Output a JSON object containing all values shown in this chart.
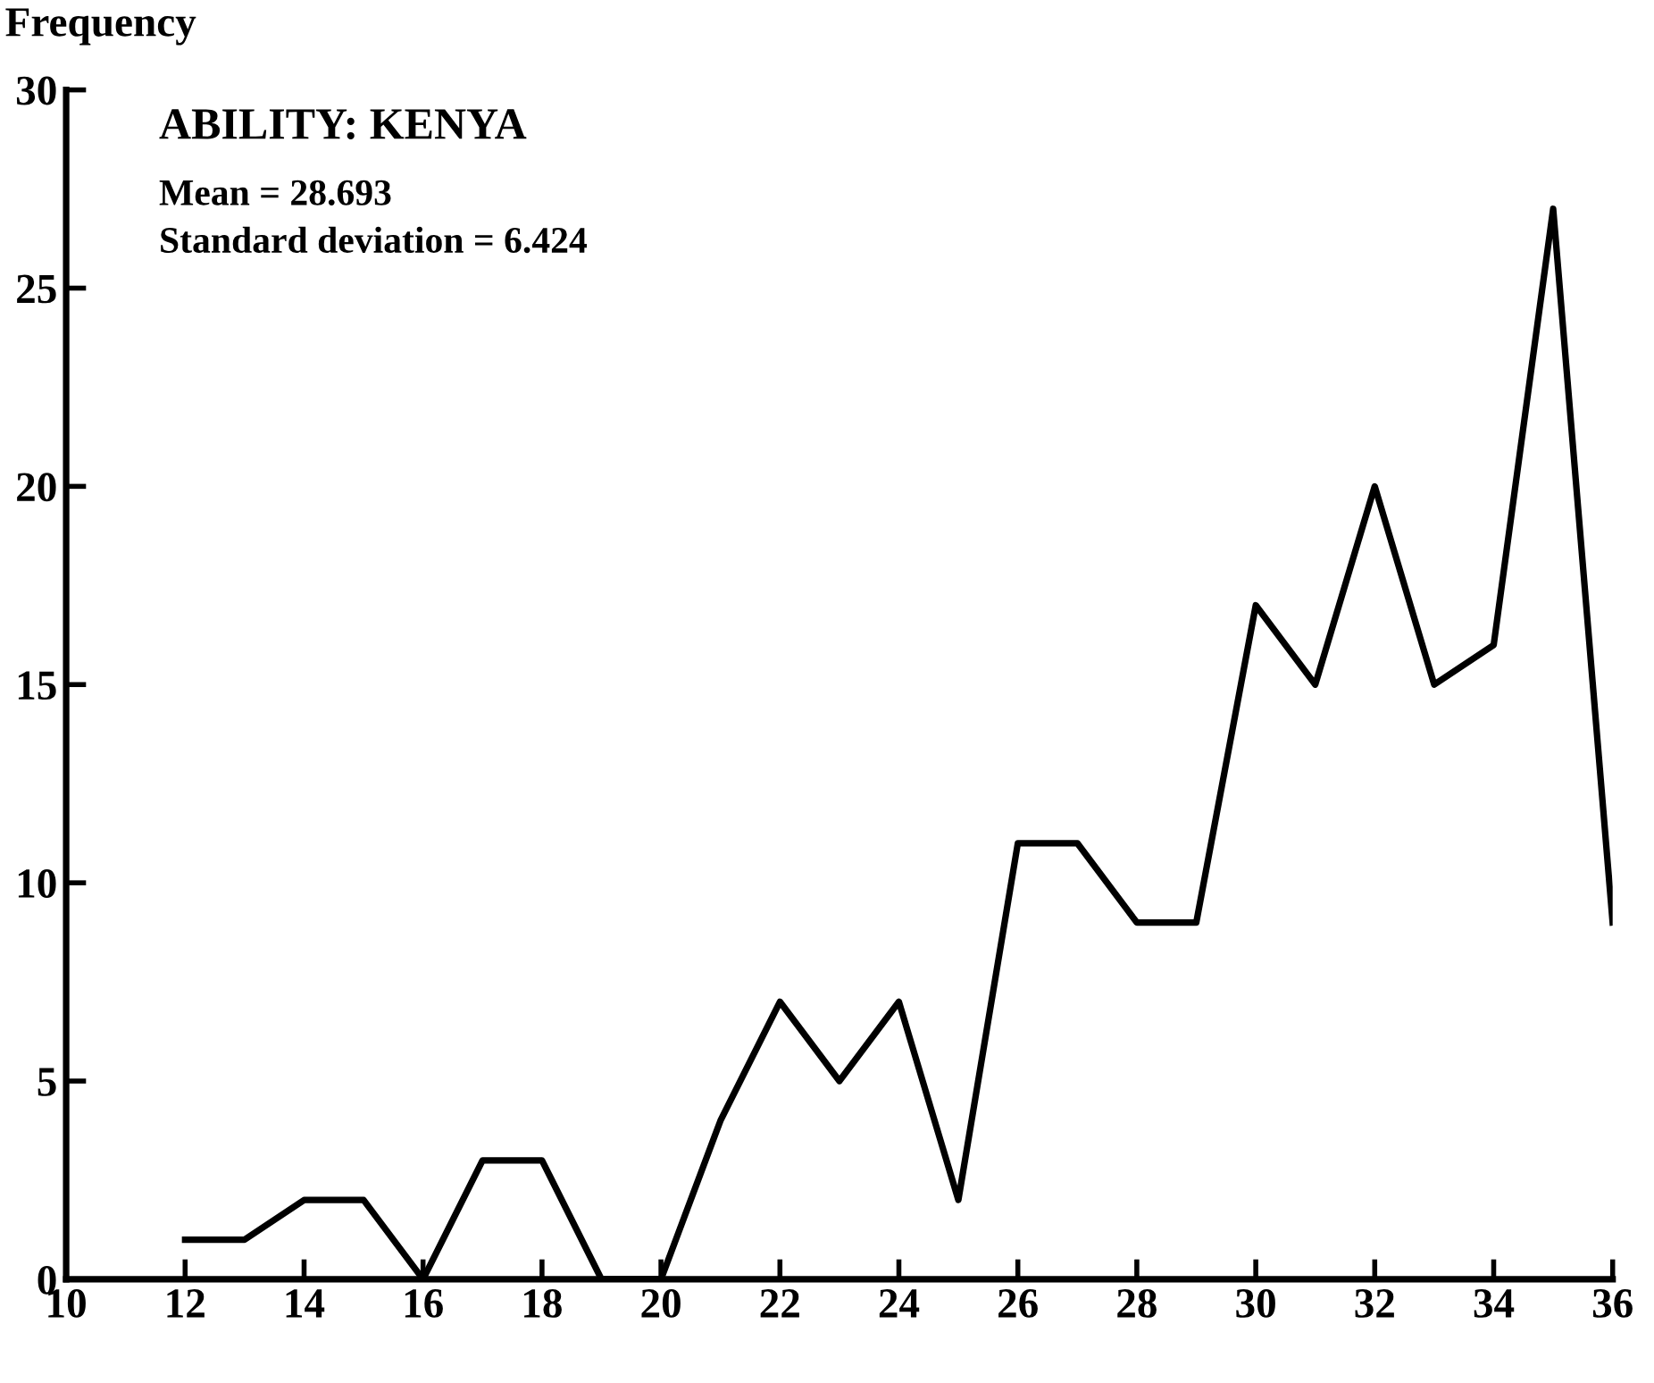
{
  "chart_data": {
    "type": "line",
    "title": "ABILITY: KENYA",
    "ylabel": "Frequency",
    "annotations": [
      "Mean = 28.693",
      "Standard deviation = 6.424"
    ],
    "x": [
      12,
      13,
      14,
      15,
      16,
      17,
      18,
      19,
      20,
      21,
      22,
      23,
      24,
      25,
      26,
      27,
      28,
      29,
      30,
      31,
      32,
      33,
      34,
      35,
      36
    ],
    "series": [
      {
        "color": "#000000",
        "values": [
          1,
          1,
          2,
          2,
          0,
          3,
          3,
          0,
          0,
          4,
          7,
          5,
          7,
          2,
          11,
          11,
          9,
          9,
          17,
          15,
          20,
          15,
          16,
          27,
          9
        ]
      }
    ],
    "xlim": [
      10,
      36
    ],
    "xticks": [
      10,
      12,
      14,
      16,
      18,
      20,
      22,
      24,
      26,
      28,
      30,
      32,
      34,
      36
    ],
    "ylim": [
      0,
      30
    ],
    "yticks": [
      0,
      5,
      10,
      15,
      20,
      25,
      30
    ],
    "grid": false,
    "legend": false,
    "marker": "none",
    "line_style": "solid"
  }
}
